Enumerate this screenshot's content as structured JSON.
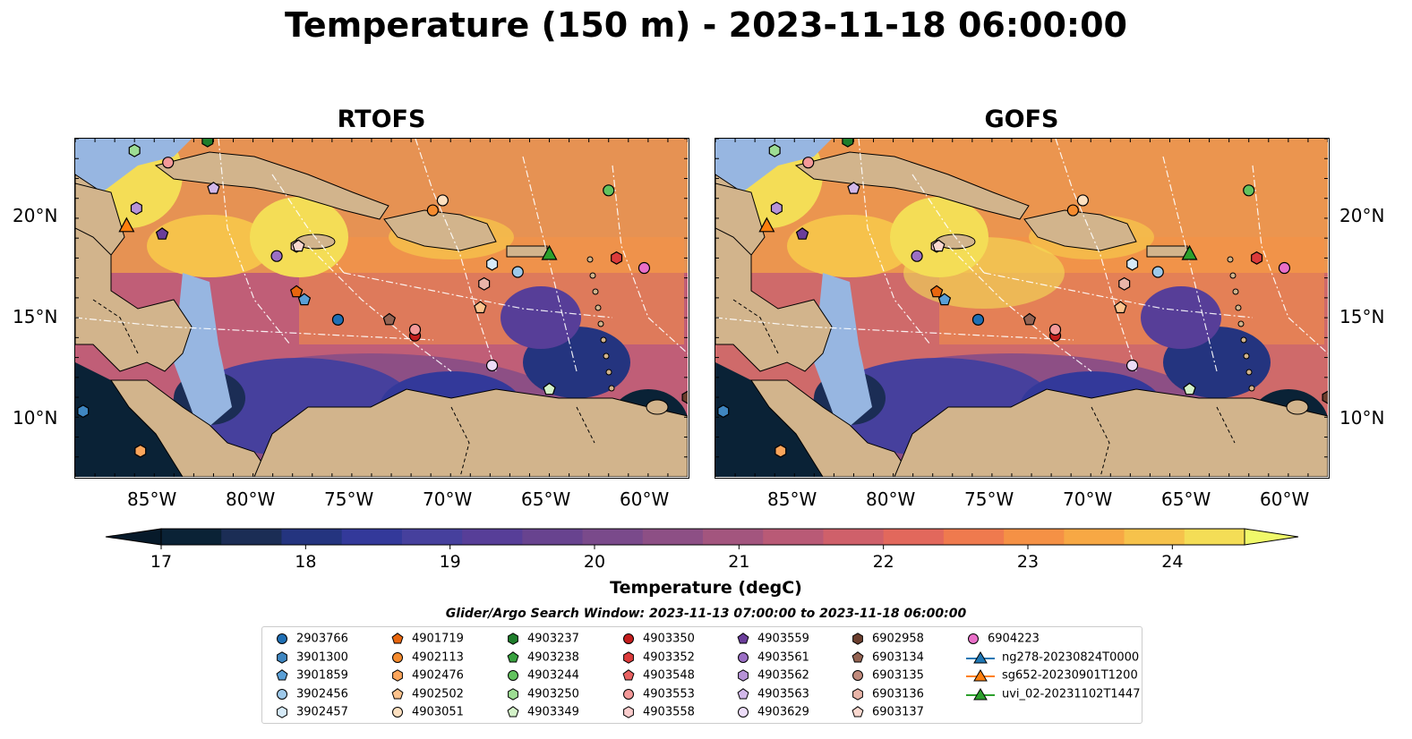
{
  "title": "Temperature (150 m) - 2023-11-18 06:00:00",
  "panels": [
    {
      "title": "RTOFS"
    },
    {
      "title": "GOFS"
    }
  ],
  "axes": {
    "lat_ticks": [
      "20°N",
      "15°N",
      "10°N"
    ],
    "lon_ticks": [
      "85°W",
      "80°W",
      "75°W",
      "70°W",
      "65°W",
      "60°W"
    ]
  },
  "colorbar": {
    "label": "Temperature (degC)",
    "min": 17,
    "max": 24.5,
    "tick_labels": [
      "17",
      "18",
      "19",
      "20",
      "21",
      "22",
      "23",
      "24"
    ],
    "colors": [
      "#0a2236",
      "#1b2d55",
      "#24347f",
      "#33399a",
      "#46409d",
      "#573e98",
      "#68438f",
      "#7a4a8b",
      "#8d4f85",
      "#a3557e",
      "#b95a76",
      "#cf606a",
      "#e2685c",
      "#ef7a4e",
      "#f59145",
      "#f7a844",
      "#f6c24b",
      "#f4dd56"
    ],
    "extend_colors": {
      "low": "#071a2a",
      "high": "#f0f96a"
    }
  },
  "search_window": "Glider/Argo Search Window: 2023-11-13 07:00:00 to 2023-11-18 06:00:00",
  "legend": {
    "columns": [
      [
        {
          "label": "2903766",
          "marker": "circle",
          "color": "#1f6fb4"
        },
        {
          "label": "3901300",
          "marker": "hexagon",
          "color": "#3f86c0"
        },
        {
          "label": "3901859",
          "marker": "pentagon",
          "color": "#5a9fd6"
        },
        {
          "label": "3902456",
          "marker": "circle",
          "color": "#9ec9ea"
        },
        {
          "label": "3902457",
          "marker": "hexagon",
          "color": "#d6eaf8"
        }
      ],
      [
        {
          "label": "4901719",
          "marker": "pentagon",
          "color": "#e8660e"
        },
        {
          "label": "4902113",
          "marker": "circle",
          "color": "#f58b2e"
        },
        {
          "label": "4902476",
          "marker": "hexagon",
          "color": "#fba55b"
        },
        {
          "label": "4902502",
          "marker": "pentagon",
          "color": "#fdc38d"
        },
        {
          "label": "4903051",
          "marker": "circle",
          "color": "#fde0c0"
        }
      ],
      [
        {
          "label": "4903237",
          "marker": "hexagon",
          "color": "#1e7d2b"
        },
        {
          "label": "4903238",
          "marker": "pentagon",
          "color": "#38a13f"
        },
        {
          "label": "4903244",
          "marker": "circle",
          "color": "#62c25e"
        },
        {
          "label": "4903250",
          "marker": "hexagon",
          "color": "#9ddd93"
        },
        {
          "label": "4903349",
          "marker": "pentagon",
          "color": "#d3f2c8"
        }
      ],
      [
        {
          "label": "4903350",
          "marker": "circle",
          "color": "#c41d1d"
        },
        {
          "label": "4903352",
          "marker": "hexagon",
          "color": "#dc3b3b"
        },
        {
          "label": "4903548",
          "marker": "pentagon",
          "color": "#e86262"
        },
        {
          "label": "4903553",
          "marker": "circle",
          "color": "#f49999"
        },
        {
          "label": "4903558",
          "marker": "hexagon",
          "color": "#fbcdcd"
        }
      ],
      [
        {
          "label": "4903559",
          "marker": "pentagon",
          "color": "#6a3d9a"
        },
        {
          "label": "4903561",
          "marker": "circle",
          "color": "#9b6fc4"
        },
        {
          "label": "4903562",
          "marker": "hexagon",
          "color": "#b793d8"
        },
        {
          "label": "4903563",
          "marker": "pentagon",
          "color": "#d2b8ea"
        },
        {
          "label": "4903629",
          "marker": "circle",
          "color": "#ecdcf8"
        }
      ],
      [
        {
          "label": "6902958",
          "marker": "hexagon",
          "color": "#6b3e2e"
        },
        {
          "label": "6903134",
          "marker": "pentagon",
          "color": "#946352"
        },
        {
          "label": "6903135",
          "marker": "circle",
          "color": "#c08a7c"
        },
        {
          "label": "6903136",
          "marker": "hexagon",
          "color": "#e8b4a8"
        },
        {
          "label": "6903137",
          "marker": "pentagon",
          "color": "#fbd8cf"
        }
      ],
      [
        {
          "label": "6904223",
          "marker": "circle",
          "color": "#e96fc8"
        },
        {
          "label": "ng278-20230824T0000",
          "marker": "triangle-line",
          "color": "#1f77b4"
        },
        {
          "label": "sg652-20230901T1200",
          "marker": "triangle-line",
          "color": "#ff7f0e"
        },
        {
          "label": "uvi_02-20231102T1447",
          "marker": "triangle-line",
          "color": "#2ca02c"
        }
      ]
    ]
  },
  "colors": {
    "land": "#d2b48c",
    "shelf": "#97b6e1",
    "background": "#ffffff"
  },
  "markers": [
    {
      "id": "2903766",
      "shape": "circle",
      "color": "#1f6fb4",
      "lon": -75.7,
      "lat": 14.9
    },
    {
      "id": "3901300",
      "shape": "hexagon",
      "color": "#3f86c0",
      "lon": -88.6,
      "lat": 10.3
    },
    {
      "id": "3901859",
      "shape": "pentagon",
      "color": "#5a9fd6",
      "lon": -77.4,
      "lat": 15.9
    },
    {
      "id": "3902456",
      "shape": "circle",
      "color": "#9ec9ea",
      "lon": -66.6,
      "lat": 17.3
    },
    {
      "id": "3902457",
      "shape": "hexagon",
      "color": "#d6eaf8",
      "lon": -67.9,
      "lat": 17.7
    },
    {
      "id": "4901719",
      "shape": "pentagon",
      "color": "#e8660e",
      "lon": -77.8,
      "lat": 16.3
    },
    {
      "id": "4902113",
      "shape": "circle",
      "color": "#f58b2e",
      "lon": -70.9,
      "lat": 20.4
    },
    {
      "id": "4902476",
      "shape": "hexagon",
      "color": "#fba55b",
      "lon": -85.7,
      "lat": 8.3
    },
    {
      "id": "4902502",
      "shape": "pentagon",
      "color": "#fdc38d",
      "lon": -68.5,
      "lat": 15.5
    },
    {
      "id": "4903051",
      "shape": "circle",
      "color": "#fde0c0",
      "lon": -70.4,
      "lat": 20.9
    },
    {
      "id": "4903237",
      "shape": "hexagon",
      "color": "#1e7d2b",
      "lon": -82.3,
      "lat": 23.9
    },
    {
      "id": "4903244",
      "shape": "circle",
      "color": "#62c25e",
      "lon": -62.0,
      "lat": 21.4
    },
    {
      "id": "4903250",
      "shape": "hexagon",
      "color": "#9ddd93",
      "lon": -86.0,
      "lat": 23.4
    },
    {
      "id": "4903349",
      "shape": "pentagon",
      "color": "#d3f2c8",
      "lon": -65.0,
      "lat": 11.4
    },
    {
      "id": "4903350",
      "shape": "circle",
      "color": "#c41d1d",
      "lon": -71.8,
      "lat": 14.1
    },
    {
      "id": "4903352",
      "shape": "hexagon",
      "color": "#dc3b3b",
      "lon": -61.6,
      "lat": 18.0
    },
    {
      "id": "4903553",
      "shape": "circle",
      "color": "#f49999",
      "lon": -71.8,
      "lat": 14.4
    },
    {
      "id": "4903558",
      "shape": "hexagon",
      "color": "#fbcdcd",
      "lon": -77.8,
      "lat": 18.6
    },
    {
      "id": "4903559",
      "shape": "pentagon",
      "color": "#6a3d9a",
      "lon": -84.6,
      "lat": 19.2
    },
    {
      "id": "4903561",
      "shape": "circle",
      "color": "#9b6fc4",
      "lon": -78.8,
      "lat": 18.1
    },
    {
      "id": "4903562",
      "shape": "hexagon",
      "color": "#b793d8",
      "lon": -85.9,
      "lat": 20.5
    },
    {
      "id": "4903563",
      "shape": "pentagon",
      "color": "#d2b8ea",
      "lon": -82.0,
      "lat": 21.5
    },
    {
      "id": "4903629",
      "shape": "circle",
      "color": "#ecdcf8",
      "lon": -67.9,
      "lat": 12.6
    },
    {
      "id": "6902958",
      "shape": "hexagon",
      "color": "#6b3e2e",
      "lon": -58.0,
      "lat": 11.0
    },
    {
      "id": "6903134",
      "shape": "pentagon",
      "color": "#946352",
      "lon": -73.1,
      "lat": 14.9
    },
    {
      "id": "6903136",
      "shape": "hexagon",
      "color": "#e8b4a8",
      "lon": -68.3,
      "lat": 16.7
    },
    {
      "id": "6903137",
      "shape": "pentagon",
      "color": "#fbd8cf",
      "lon": -77.7,
      "lat": 18.6
    },
    {
      "id": "6904223",
      "shape": "circle",
      "color": "#e96fc8",
      "lon": -60.2,
      "lat": 17.5
    },
    {
      "id": "4903051b",
      "shape": "circle",
      "color": "#f49999",
      "lon": -84.3,
      "lat": 22.8
    },
    {
      "id": "sg652-20230901T1200",
      "shape": "triangle",
      "color": "#ff7f0e",
      "lon": -86.4,
      "lat": 19.6
    },
    {
      "id": "uvi_02-20231102T1447",
      "shape": "triangle",
      "color": "#2ca02c",
      "lon": -65.0,
      "lat": 18.2
    }
  ]
}
